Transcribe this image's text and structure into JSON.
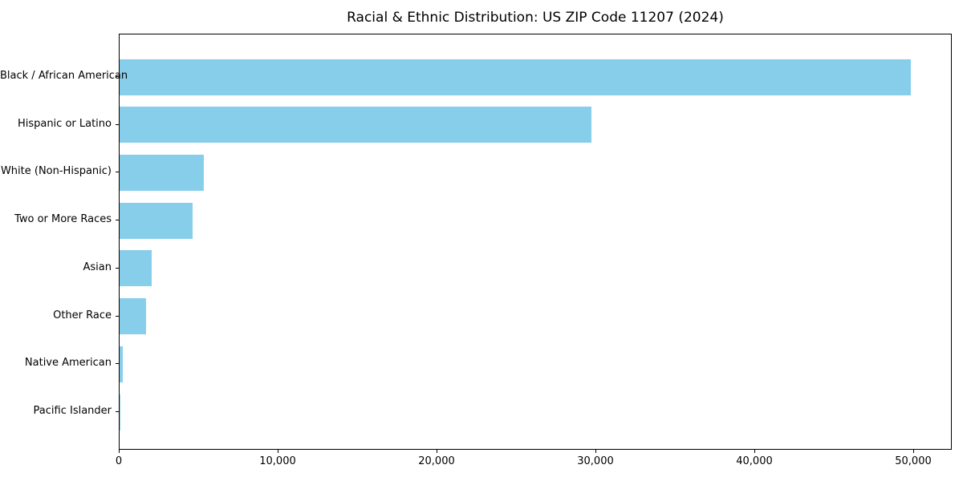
{
  "chart_data": {
    "type": "bar",
    "orientation": "horizontal",
    "title": "Racial & Ethnic Distribution: US ZIP Code 11207 (2024)",
    "categories": [
      "Black / African American",
      "Hispanic or Latino",
      "White (Non-Hispanic)",
      "Two or More Races",
      "Asian",
      "Other Race",
      "Native American",
      "Pacific Islander"
    ],
    "values": [
      49800,
      29700,
      5300,
      4600,
      2000,
      1650,
      190,
      30
    ],
    "xlabel": "",
    "ylabel": "",
    "xlim": [
      0,
      52400
    ],
    "xticks": [
      0,
      10000,
      20000,
      30000,
      40000,
      50000
    ],
    "xtick_labels": [
      "0",
      "10,000",
      "20,000",
      "30,000",
      "40,000",
      "50,000"
    ],
    "bar_color": "#87CEEB",
    "frame_color": "#000000",
    "background_color": "#ffffff",
    "grid": false,
    "legend": "none"
  }
}
